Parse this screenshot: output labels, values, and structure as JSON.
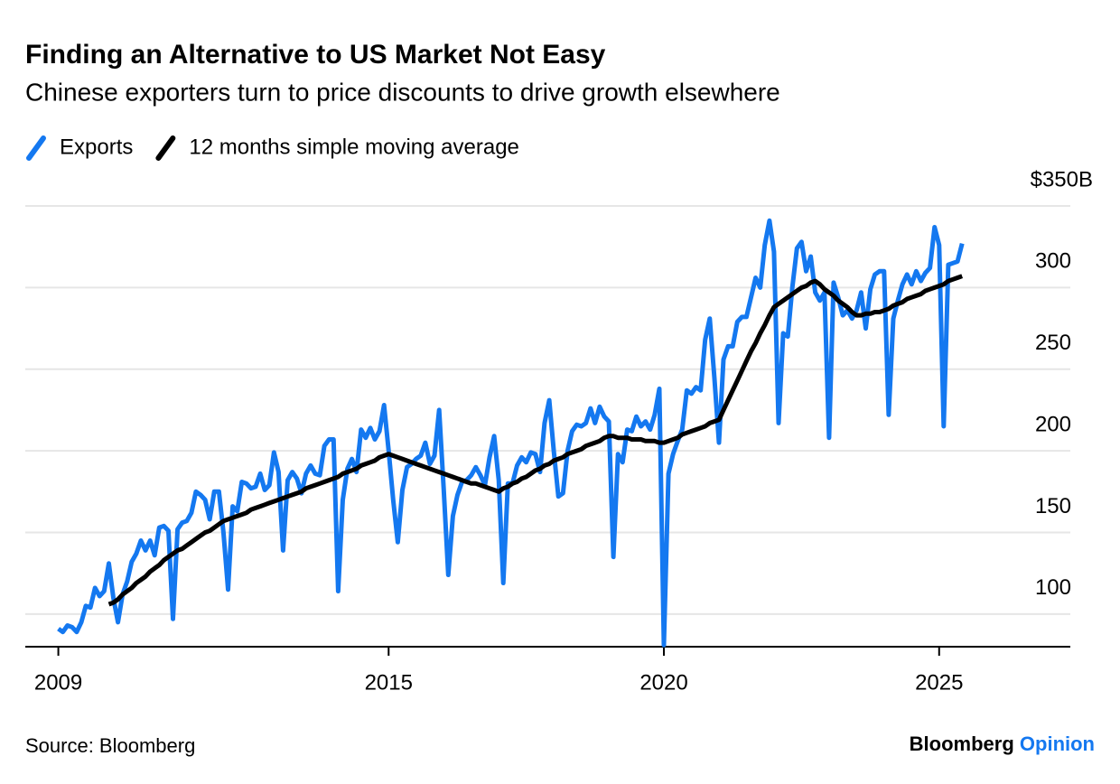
{
  "chart_data": {
    "type": "line",
    "title": "Finding an Alternative to US Market Not Easy",
    "subtitle": "Chinese exporters turn to price discounts to drive growth elsewhere",
    "source": "Source: Bloomberg",
    "brand": "Bloomberg",
    "brand_suffix": "Opinion",
    "x": [
      2009.0,
      2009.083,
      2009.167,
      2009.25,
      2009.333,
      2009.417,
      2009.5,
      2009.583,
      2009.667,
      2009.75,
      2009.833,
      2009.917,
      2010.0,
      2010.083,
      2010.167,
      2010.25,
      2010.333,
      2010.417,
      2010.5,
      2010.583,
      2010.667,
      2010.75,
      2010.833,
      2010.917,
      2011.0,
      2011.083,
      2011.167,
      2011.25,
      2011.333,
      2011.417,
      2011.5,
      2011.583,
      2011.667,
      2011.75,
      2011.833,
      2011.917,
      2012.0,
      2012.083,
      2012.167,
      2012.25,
      2012.333,
      2012.417,
      2012.5,
      2012.583,
      2012.667,
      2012.75,
      2012.833,
      2012.917,
      2013.0,
      2013.083,
      2013.167,
      2013.25,
      2013.333,
      2013.417,
      2013.5,
      2013.583,
      2013.667,
      2013.75,
      2013.833,
      2013.917,
      2014.0,
      2014.083,
      2014.167,
      2014.25,
      2014.333,
      2014.417,
      2014.5,
      2014.583,
      2014.667,
      2014.75,
      2014.833,
      2014.917,
      2015.0,
      2015.083,
      2015.167,
      2015.25,
      2015.333,
      2015.417,
      2015.5,
      2015.583,
      2015.667,
      2015.75,
      2015.833,
      2015.917,
      2016.0,
      2016.083,
      2016.167,
      2016.25,
      2016.333,
      2016.417,
      2016.5,
      2016.583,
      2016.667,
      2016.75,
      2016.833,
      2016.917,
      2017.0,
      2017.083,
      2017.167,
      2017.25,
      2017.333,
      2017.417,
      2017.5,
      2017.583,
      2017.667,
      2017.75,
      2017.833,
      2017.917,
      2018.0,
      2018.083,
      2018.167,
      2018.25,
      2018.333,
      2018.417,
      2018.5,
      2018.583,
      2018.667,
      2018.75,
      2018.833,
      2018.917,
      2019.0,
      2019.083,
      2019.167,
      2019.25,
      2019.333,
      2019.417,
      2019.5,
      2019.583,
      2019.667,
      2019.75,
      2019.833,
      2019.917,
      2020.0,
      2020.083,
      2020.167,
      2020.25,
      2020.333,
      2020.417,
      2020.5,
      2020.583,
      2020.667,
      2020.75,
      2020.833,
      2020.917,
      2021.0,
      2021.083,
      2021.167,
      2021.25,
      2021.333,
      2021.417,
      2021.5,
      2021.583,
      2021.667,
      2021.75,
      2021.833,
      2021.917,
      2022.0,
      2022.083,
      2022.167,
      2022.25,
      2022.333,
      2022.417,
      2022.5,
      2022.583,
      2022.667,
      2022.75,
      2022.833,
      2022.917,
      2023.0,
      2023.083,
      2023.167,
      2023.25,
      2023.333,
      2023.417,
      2023.5,
      2023.583,
      2023.667,
      2023.75,
      2023.833,
      2023.917,
      2024.0,
      2024.083,
      2024.167,
      2024.25,
      2024.333,
      2024.417,
      2024.5,
      2024.583,
      2024.667,
      2024.75,
      2024.833,
      2024.917,
      2025.0,
      2025.083,
      2025.167,
      2025.25,
      2025.333,
      2025.417
    ],
    "series": [
      {
        "name": "Exports",
        "color": "#1478f0",
        "values": [
          91,
          89,
          93,
          92,
          89,
          95,
          105,
          104,
          116,
          111,
          114,
          131,
          110,
          95,
          112,
          120,
          132,
          137,
          145,
          139,
          145,
          136,
          153,
          154,
          151,
          97,
          152,
          156,
          157,
          162,
          175,
          173,
          170,
          158,
          175,
          175,
          150,
          115,
          166,
          163,
          181,
          180,
          177,
          178,
          186,
          176,
          179,
          199,
          187,
          139,
          182,
          187,
          183,
          174,
          186,
          191,
          186,
          185,
          203,
          207,
          207,
          114,
          170,
          189,
          195,
          187,
          213,
          208,
          214,
          207,
          212,
          228,
          200,
          170,
          144,
          176,
          190,
          192,
          195,
          197,
          205,
          192,
          197,
          225,
          177,
          124,
          160,
          173,
          181,
          182,
          185,
          190,
          185,
          179,
          196,
          209,
          182,
          119,
          180,
          180,
          191,
          196,
          193,
          199,
          198,
          187,
          217,
          231,
          200,
          172,
          174,
          200,
          212,
          216,
          215,
          217,
          226,
          217,
          227,
          221,
          218,
          135,
          198,
          193,
          213,
          212,
          221,
          215,
          218,
          213,
          222,
          238,
          81,
          186,
          198,
          206,
          213,
          237,
          235,
          239,
          237,
          268,
          281,
          245,
          205,
          256,
          264,
          264,
          279,
          282,
          282,
          294,
          306,
          300,
          326,
          341,
          322,
          217,
          272,
          270,
          300,
          324,
          328,
          310,
          319,
          297,
          292,
          297,
          208,
          303,
          294,
          283,
          286,
          281,
          286,
          297,
          275,
          299,
          308,
          310,
          310,
          222,
          281,
          292,
          302,
          308,
          302,
          310,
          304,
          309,
          312,
          337,
          326,
          215,
          314,
          315,
          316,
          327
        ]
      },
      {
        "name": "12 months simple moving average",
        "color": "#000000",
        "values": [
          null,
          null,
          null,
          null,
          null,
          null,
          null,
          null,
          null,
          null,
          null,
          106,
          107,
          109,
          112,
          114,
          116,
          119,
          121,
          123,
          126,
          128,
          130,
          133,
          135,
          137,
          139,
          140,
          142,
          144,
          146,
          148,
          150,
          151,
          153,
          155,
          157,
          158,
          159,
          160,
          161,
          162,
          164,
          165,
          166,
          167,
          168,
          169,
          170,
          171,
          172,
          173,
          174,
          175,
          177,
          178,
          179,
          180,
          181,
          182,
          183,
          184,
          186,
          187,
          188,
          189,
          191,
          192,
          193,
          194,
          196,
          197,
          198,
          197,
          196,
          195,
          194,
          193,
          192,
          191,
          190,
          189,
          188,
          187,
          186,
          185,
          184,
          183,
          182,
          181,
          180,
          180,
          179,
          178,
          177,
          176,
          175,
          177,
          178,
          180,
          181,
          183,
          184,
          186,
          188,
          189,
          191,
          192,
          194,
          195,
          196,
          198,
          199,
          200,
          201,
          203,
          204,
          205,
          206,
          208,
          209,
          209,
          208,
          208,
          208,
          207,
          207,
          207,
          206,
          206,
          206,
          205,
          205,
          206,
          207,
          208,
          210,
          211,
          212,
          213,
          214,
          215,
          217,
          218,
          219,
          225,
          231,
          237,
          243,
          249,
          255,
          261,
          266,
          272,
          277,
          283,
          288,
          290,
          292,
          294,
          296,
          298,
          300,
          301,
          303,
          304,
          302,
          299,
          297,
          295,
          292,
          290,
          288,
          285,
          283,
          283,
          284,
          284,
          285,
          285,
          286,
          287,
          289,
          290,
          291,
          293,
          294,
          295,
          296,
          298,
          299,
          300,
          301,
          302,
          304,
          305,
          306,
          307
        ]
      }
    ],
    "xlim": [
      2008.4,
      2027.35
    ],
    "xticks": [
      2009,
      2015,
      2020,
      2025
    ],
    "ylim": [
      80,
      350
    ],
    "yticks": [
      100,
      150,
      200,
      250,
      300,
      {
        "value": 350,
        "label": "$350B"
      }
    ],
    "grid": true,
    "legend": "top-left"
  }
}
